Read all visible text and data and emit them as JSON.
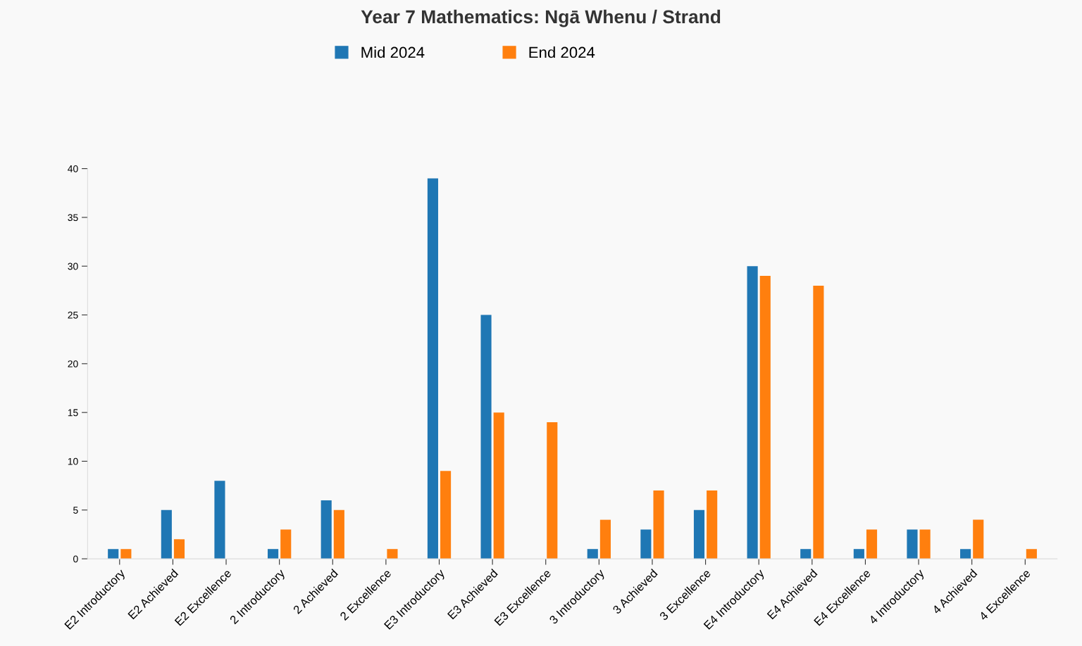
{
  "chart_data": {
    "type": "bar",
    "title": "Year 7 Mathematics: Ngā Whenu / Strand",
    "categories": [
      "E2 Introductory",
      "E2 Achieved",
      "E2 Excellence",
      "2 Introductory",
      "2 Achieved",
      "2 Excellence",
      "E3 Introductory",
      "E3 Achieved",
      "E3 Excellence",
      "3 Introductory",
      "3 Achieved",
      "3 Excellence",
      "E4 Introductory",
      "E4 Achieved",
      "E4 Excellence",
      "4 Introductory",
      "4 Achieved",
      "4 Excellence"
    ],
    "series": [
      {
        "name": "Mid 2024",
        "color": "#1f77b4",
        "values": [
          1,
          5,
          8,
          1,
          6,
          null,
          39,
          25,
          null,
          1,
          3,
          5,
          30,
          1,
          1,
          3,
          1,
          null
        ]
      },
      {
        "name": "End 2024",
        "color": "#ff7f0e",
        "values": [
          1,
          2,
          null,
          3,
          5,
          1,
          9,
          15,
          14,
          4,
          7,
          7,
          29,
          28,
          3,
          3,
          4,
          1
        ]
      }
    ],
    "ylim": [
      0,
      40
    ],
    "yticks": [
      0,
      5,
      10,
      15,
      20,
      25,
      30,
      35,
      40
    ],
    "grid": false,
    "legend": "top"
  }
}
